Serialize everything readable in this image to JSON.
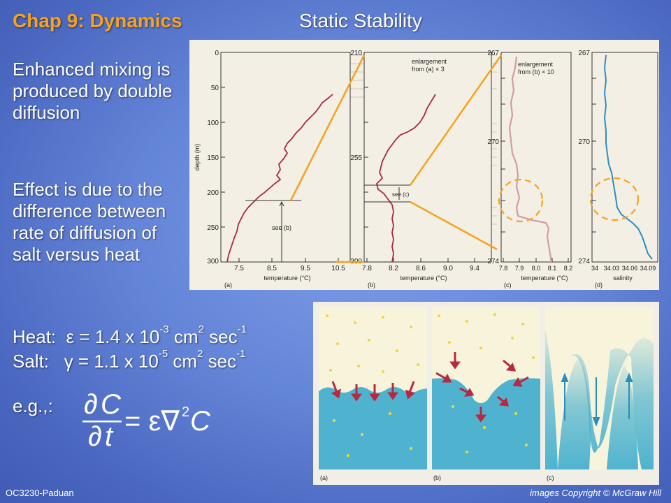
{
  "header": {
    "chapter": "Chap 9: Dynamics",
    "title": "Static Stability"
  },
  "bullets": [
    "Enhanced mixing is produced by double diffusion",
    "Effect is due to the difference between rate of diffusion of salt versus heat"
  ],
  "coefficients": {
    "heat": {
      "label": "Heat:",
      "symbol": "ε",
      "value": " = 1.4 x 10",
      "exp": "-3",
      "unit": " cm",
      "unit_exp": "2",
      "sec": " sec",
      "sec_exp": "-1"
    },
    "salt": {
      "label": "Salt:",
      "symbol": "γ",
      "value": " = 1.1 x 10",
      "exp": "-5",
      "unit": " cm",
      "unit_exp": "2",
      "sec": " sec",
      "sec_exp": "-1"
    }
  },
  "example": {
    "label": "e.g.,:"
  },
  "equation": {
    "d": "∂",
    "C": "C",
    "t": "t",
    "rhs": "= ε∇",
    "rhs_exp": "2",
    "rhs_C": "C"
  },
  "footer": {
    "left": "OC3230-Paduan",
    "right": "images Copyright © McGraw Hill"
  },
  "figure1": {
    "ylabel": "depth (m)",
    "panel_a": {
      "label": "(a)",
      "xlabel": "temperature (°C)",
      "y_ticks": [
        "0",
        "50",
        "100",
        "150",
        "200",
        "250",
        "300"
      ],
      "x_ticks": [
        "7.5",
        "8.5",
        "9.5",
        "10.5"
      ],
      "annotation": "see (b)"
    },
    "panel_b": {
      "label": "(b)",
      "xlabel": "temperature (°C)",
      "y_ticks": [
        "210",
        "255",
        "300"
      ],
      "x_ticks": [
        "7.8",
        "8.2",
        "8.6",
        "9.0",
        "9.4"
      ],
      "note_line1": "enlargement",
      "note_line2": "from (a) × 3",
      "annotation": "see (c)"
    },
    "panel_c": {
      "label": "(c)",
      "xlabel": "temperature (°C)",
      "y_ticks": [
        "267",
        "270",
        "274"
      ],
      "x_ticks": [
        "7.8",
        "7.9",
        "8.0",
        "8.1",
        "8.2"
      ],
      "note_line1": "enlargement",
      "note_line2": "from (b) × 10"
    },
    "panel_d": {
      "label": "(d)",
      "xlabel": "salinity",
      "y_ticks": [
        "267",
        "270",
        "274"
      ],
      "x_ticks": [
        "34",
        "34.03",
        "34.06",
        "34.09"
      ]
    }
  },
  "figure2": {
    "panels": [
      "(a)",
      "(b)",
      "(c)"
    ]
  },
  "colors": {
    "accent": "#f6a21c",
    "profile_temp": "#a8264e",
    "profile_salt": "#2a8fc0",
    "water": "#4fb3cf",
    "dot": "#f2d73a",
    "arrow": "#b8283f"
  }
}
